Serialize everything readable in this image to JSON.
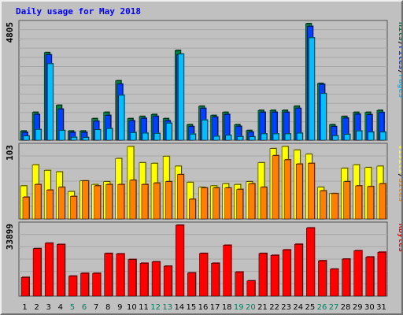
{
  "title": "Daily usage for May 2018",
  "colors": {
    "pages": "#00c0ff",
    "files": "#0040ff",
    "hits": "#008040",
    "sites": "#ff8000",
    "visits": "#ffff00",
    "kbytes": "#ff0000",
    "weekend": "#007f5f",
    "weekday": "#000080",
    "separator": "#000000"
  },
  "legends": {
    "top": [
      "Pages",
      "/",
      "Files",
      "/",
      "Hits"
    ],
    "mid": [
      "Sites",
      "/",
      "Visits"
    ],
    "bottom": [
      "KBytes"
    ]
  },
  "chart_data": [
    {
      "type": "bar",
      "label_ymax": "4805",
      "ylim": [
        0,
        4805
      ],
      "categories": [
        "1",
        "2",
        "3",
        "4",
        "5",
        "6",
        "7",
        "8",
        "9",
        "10",
        "11",
        "12",
        "13",
        "14",
        "15",
        "16",
        "17",
        "18",
        "19",
        "20",
        "21",
        "22",
        "23",
        "24",
        "25",
        "26",
        "27",
        "28",
        "29",
        "30",
        "31"
      ],
      "weekend_days": [
        "5",
        "6",
        "12",
        "13",
        "19",
        "20",
        "26",
        "27"
      ],
      "series": [
        {
          "name": "Hits",
          "values": [
            380,
            1150,
            3610,
            1440,
            380,
            380,
            890,
            1150,
            2450,
            890,
            980,
            1060,
            890,
            3700,
            640,
            1400,
            1020,
            1150,
            640,
            400,
            1230,
            1230,
            1230,
            1400,
            4805,
            2340,
            640,
            980,
            1150,
            1150,
            1230
          ]
        },
        {
          "name": "Files",
          "values": [
            320,
            1060,
            3520,
            1280,
            320,
            320,
            780,
            1020,
            2310,
            800,
            900,
            980,
            800,
            3520,
            560,
            1310,
            950,
            1060,
            570,
            330,
            1150,
            1150,
            1150,
            1310,
            4690,
            2300,
            560,
            910,
            1070,
            1050,
            1140
          ]
        },
        {
          "name": "Pages",
          "values": [
            170,
            440,
            3150,
            400,
            120,
            110,
            430,
            480,
            1850,
            310,
            290,
            280,
            700,
            3550,
            250,
            830,
            160,
            200,
            150,
            140,
            260,
            260,
            260,
            290,
            4220,
            1920,
            180,
            240,
            380,
            330,
            330
          ]
        }
      ]
    },
    {
      "type": "bar",
      "label_ymax": "103",
      "ylim": [
        0,
        103
      ],
      "categories": [
        "1",
        "2",
        "3",
        "4",
        "5",
        "6",
        "7",
        "8",
        "9",
        "10",
        "11",
        "12",
        "13",
        "14",
        "15",
        "16",
        "17",
        "18",
        "19",
        "20",
        "21",
        "22",
        "23",
        "24",
        "25",
        "26",
        "27",
        "28",
        "29",
        "30",
        "31"
      ],
      "series": [
        {
          "name": "Visits",
          "values": [
            47,
            77,
            69,
            67,
            39,
            54,
            49,
            53,
            86,
            103,
            80,
            79,
            89,
            75,
            52,
            45,
            47,
            50,
            49,
            53,
            80,
            100,
            103,
            98,
            92,
            45,
            36,
            72,
            77,
            73,
            75
          ]
        },
        {
          "name": "Sites",
          "values": [
            31,
            49,
            41,
            45,
            32,
            54,
            47,
            49,
            49,
            55,
            49,
            51,
            53,
            63,
            28,
            44,
            44,
            44,
            42,
            50,
            45,
            90,
            84,
            78,
            79,
            40,
            36,
            53,
            47,
            46,
            50
          ]
        }
      ]
    },
    {
      "type": "bar",
      "label_ymax": "33899",
      "ylim": [
        0,
        33899
      ],
      "categories": [
        "1",
        "2",
        "3",
        "4",
        "5",
        "6",
        "7",
        "8",
        "9",
        "10",
        "11",
        "12",
        "13",
        "14",
        "15",
        "16",
        "17",
        "18",
        "19",
        "20",
        "21",
        "22",
        "23",
        "24",
        "25",
        "26",
        "27",
        "28",
        "29",
        "30",
        "31"
      ],
      "series": [
        {
          "name": "KBytes",
          "values": [
            8950,
            22700,
            25300,
            24700,
            9560,
            10900,
            10900,
            20400,
            20200,
            17500,
            15700,
            16400,
            14300,
            33899,
            11100,
            20400,
            15700,
            24300,
            11500,
            7290,
            20400,
            19500,
            22100,
            24800,
            32600,
            16900,
            12900,
            17700,
            21700,
            18700,
            21000
          ]
        }
      ]
    }
  ]
}
